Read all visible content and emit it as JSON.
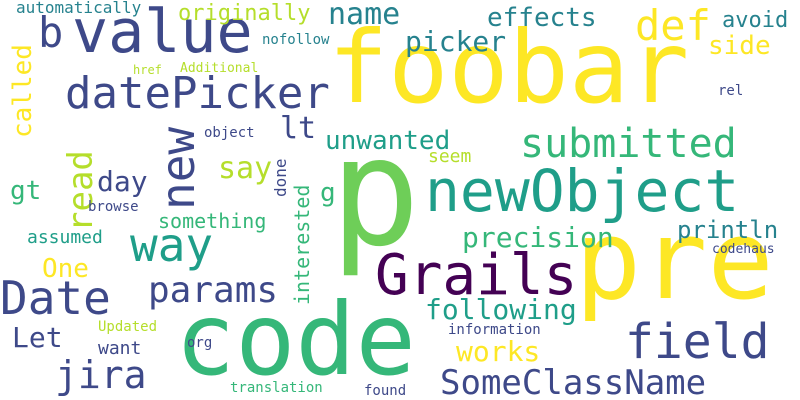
{
  "words": [
    "foobar",
    "p",
    "pre",
    "code",
    "newObject",
    "value",
    "b",
    "datePicker",
    "Date",
    "Grails",
    "new",
    "way",
    "SomeClassName",
    "field",
    "submitted",
    "params",
    "jira",
    "read",
    "unwanted",
    "precision",
    "def",
    "effects",
    "picker",
    "name",
    "originally",
    "automatically",
    "called",
    "lt",
    "gt",
    "day",
    "say",
    "Let",
    "One",
    "following",
    "works",
    "println",
    "avoid",
    "side",
    "nofollow",
    "Additional",
    "href",
    "rel",
    "object",
    "seem",
    "something",
    "interested",
    "done",
    "g",
    "browse",
    "assumed",
    "codehaus",
    "information",
    "Updated",
    "want",
    "org",
    "translation",
    "found"
  ]
}
